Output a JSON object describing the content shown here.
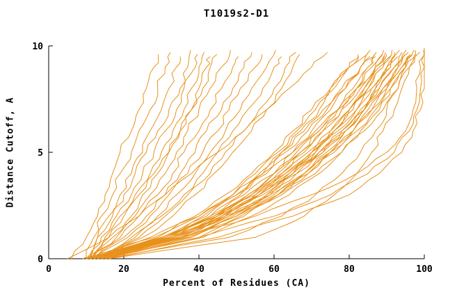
{
  "chart_data": {
    "type": "line",
    "title": "T1019s2-D1",
    "xlabel": "Percent of Residues (CA)",
    "ylabel": "Distance Cutoff, A",
    "xlim": [
      0,
      100
    ],
    "ylim": [
      0,
      10
    ],
    "x_ticks": [
      0,
      20,
      40,
      60,
      80,
      100
    ],
    "y_ticks": [
      0,
      5,
      10
    ],
    "grid": false,
    "legend": "none",
    "line_color": "#e8911a",
    "axis_color": "#000000",
    "cutoffs": [
      0,
      1,
      2,
      3,
      4,
      5,
      6,
      7,
      8,
      9,
      10
    ],
    "curves": [
      {
        "xs": [
          6,
          10,
          13,
          15,
          17,
          19,
          22,
          24,
          26,
          28,
          30
        ],
        "top": 9.6
      },
      {
        "xs": [
          10,
          12,
          14,
          17,
          19,
          22,
          24,
          27,
          29,
          31,
          33
        ],
        "top": 9.7
      },
      {
        "xs": [
          10,
          13,
          16,
          19,
          22,
          25,
          27,
          30,
          32,
          34,
          36
        ],
        "top": 9.5
      },
      {
        "xs": [
          11,
          13,
          17,
          20,
          23,
          26,
          29,
          32,
          35,
          37,
          38
        ],
        "top": 9.8
      },
      {
        "xs": [
          11,
          14,
          18,
          22,
          25,
          28,
          31,
          34,
          36,
          39,
          40
        ],
        "top": 9.6
      },
      {
        "xs": [
          12,
          15,
          19,
          23,
          27,
          30,
          33,
          36,
          38,
          40,
          42
        ],
        "top": 9.7
      },
      {
        "xs": [
          12,
          16,
          20,
          24,
          28,
          32,
          35,
          38,
          40,
          42,
          44
        ],
        "top": 9.5
      },
      {
        "xs": [
          10,
          17,
          22,
          25,
          29,
          32,
          35,
          38,
          41,
          43,
          46
        ],
        "top": 9.6
      },
      {
        "xs": [
          11,
          18,
          23,
          27,
          31,
          34,
          37,
          40,
          43,
          46,
          49
        ],
        "top": 9.8
      },
      {
        "xs": [
          11,
          19,
          24,
          29,
          33,
          36,
          40,
          43,
          46,
          49,
          52
        ],
        "top": 9.5
      },
      {
        "xs": [
          12,
          20,
          26,
          31,
          35,
          39,
          42,
          46,
          49,
          52,
          55
        ],
        "top": 9.7
      },
      {
        "xs": [
          12,
          21,
          27,
          32,
          37,
          41,
          45,
          48,
          51,
          55,
          58
        ],
        "top": 9.6
      },
      {
        "xs": [
          13,
          22,
          29,
          34,
          39,
          43,
          47,
          51,
          54,
          58,
          61
        ],
        "top": 9.8
      },
      {
        "xs": [
          13,
          23,
          30,
          36,
          41,
          45,
          49,
          53,
          57,
          60,
          64
        ],
        "top": 9.5
      },
      {
        "xs": [
          14,
          24,
          31,
          37,
          43,
          47,
          52,
          56,
          60,
          63,
          67
        ],
        "top": 9.7
      },
      {
        "xs": [
          14,
          25,
          33,
          39,
          44,
          49,
          54,
          58,
          62,
          65,
          68
        ],
        "top": 9.6
      },
      {
        "xs": [
          5,
          16,
          24,
          31,
          38,
          45,
          52,
          58,
          64,
          70,
          76
        ],
        "top": 9.7
      },
      {
        "xs": [
          10,
          33,
          43,
          51,
          57,
          62,
          67,
          72,
          76,
          80,
          84
        ],
        "top": 9.6
      },
      {
        "xs": [
          11,
          30,
          41,
          49,
          55,
          61,
          66,
          71,
          75,
          80,
          85
        ],
        "top": 9.5
      },
      {
        "xs": [
          12,
          34,
          45,
          53,
          60,
          65,
          70,
          75,
          79,
          83,
          86
        ],
        "top": 9.7
      },
      {
        "xs": [
          9,
          28,
          39,
          47,
          54,
          60,
          65,
          70,
          75,
          80,
          87
        ],
        "top": 9.8
      },
      {
        "xs": [
          10,
          31,
          42,
          50,
          57,
          63,
          69,
          74,
          79,
          83,
          88
        ],
        "top": 9.5
      },
      {
        "xs": [
          13,
          36,
          47,
          55,
          62,
          68,
          73,
          78,
          82,
          85,
          88
        ],
        "top": 9.6
      },
      {
        "xs": [
          11,
          29,
          40,
          49,
          56,
          62,
          68,
          73,
          78,
          83,
          89
        ],
        "top": 9.7
      },
      {
        "xs": [
          12,
          33,
          45,
          54,
          61,
          67,
          72,
          77,
          81,
          85,
          89
        ],
        "top": 9.5
      },
      {
        "xs": [
          10,
          32,
          44,
          53,
          60,
          66,
          72,
          77,
          82,
          86,
          90
        ],
        "top": 9.8
      },
      {
        "xs": [
          14,
          38,
          50,
          58,
          65,
          71,
          76,
          80,
          84,
          87,
          90
        ],
        "top": 9.6
      },
      {
        "xs": [
          11,
          30,
          43,
          52,
          60,
          67,
          73,
          78,
          83,
          87,
          91
        ],
        "top": 9.7
      },
      {
        "xs": [
          13,
          35,
          47,
          56,
          63,
          70,
          75,
          80,
          84,
          88,
          91
        ],
        "top": 9.5
      },
      {
        "xs": [
          9,
          27,
          40,
          50,
          58,
          65,
          71,
          77,
          82,
          87,
          92
        ],
        "top": 9.6
      },
      {
        "xs": [
          12,
          34,
          46,
          56,
          64,
          70,
          76,
          81,
          85,
          89,
          92
        ],
        "top": 9.8
      },
      {
        "xs": [
          10,
          31,
          44,
          54,
          62,
          69,
          75,
          80,
          85,
          89,
          93
        ],
        "top": 9.5
      },
      {
        "xs": [
          15,
          40,
          52,
          61,
          68,
          74,
          79,
          84,
          87,
          90,
          93
        ],
        "top": 9.7
      },
      {
        "xs": [
          11,
          33,
          46,
          56,
          64,
          71,
          77,
          82,
          86,
          90,
          94
        ],
        "top": 9.6
      },
      {
        "xs": [
          13,
          36,
          49,
          59,
          66,
          73,
          78,
          83,
          87,
          91,
          94
        ],
        "top": 9.8
      },
      {
        "xs": [
          10,
          30,
          44,
          55,
          63,
          70,
          76,
          82,
          86,
          91,
          95
        ],
        "top": 9.5
      },
      {
        "xs": [
          12,
          35,
          48,
          58,
          66,
          73,
          79,
          84,
          88,
          92,
          95
        ],
        "top": 9.7
      },
      {
        "xs": [
          14,
          38,
          51,
          61,
          69,
          75,
          81,
          85,
          89,
          93,
          96
        ],
        "top": 9.6
      },
      {
        "xs": [
          11,
          32,
          46,
          57,
          65,
          72,
          78,
          84,
          88,
          92,
          96
        ],
        "top": 9.8
      },
      {
        "xs": [
          13,
          37,
          50,
          61,
          69,
          76,
          81,
          86,
          90,
          94,
          97
        ],
        "top": 9.5
      },
      {
        "xs": [
          10,
          31,
          45,
          56,
          65,
          72,
          79,
          84,
          89,
          93,
          97
        ],
        "top": 9.7
      },
      {
        "xs": [
          15,
          41,
          54,
          64,
          72,
          78,
          83,
          88,
          91,
          95,
          98
        ],
        "top": 9.6
      },
      {
        "xs": [
          12,
          34,
          48,
          60,
          68,
          75,
          81,
          86,
          90,
          94,
          98
        ],
        "top": 9.8
      },
      {
        "xs": [
          11,
          33,
          47,
          59,
          68,
          75,
          82,
          87,
          91,
          95,
          99
        ],
        "top": 9.6
      },
      {
        "xs": [
          13,
          36,
          50,
          62,
          71,
          78,
          84,
          89,
          93,
          96,
          100
        ],
        "top": 9.7
      },
      {
        "xs": [
          16,
          55,
          68,
          76,
          82,
          86,
          89,
          92,
          94,
          96,
          98
        ],
        "top": 9.8
      },
      {
        "xs": [
          15,
          48,
          62,
          71,
          78,
          83,
          87,
          90,
          93,
          95,
          97
        ],
        "top": 9.6
      },
      {
        "xs": [
          14,
          40,
          60,
          75,
          85,
          92,
          96,
          98,
          99,
          100,
          100
        ],
        "top": 9.9
      },
      {
        "xs": [
          12,
          35,
          55,
          70,
          82,
          90,
          95,
          97,
          98,
          99,
          100
        ],
        "top": 9.8
      },
      {
        "xs": [
          16,
          45,
          65,
          80,
          88,
          94,
          97,
          99,
          100,
          100,
          100
        ],
        "top": 9.9
      }
    ]
  }
}
